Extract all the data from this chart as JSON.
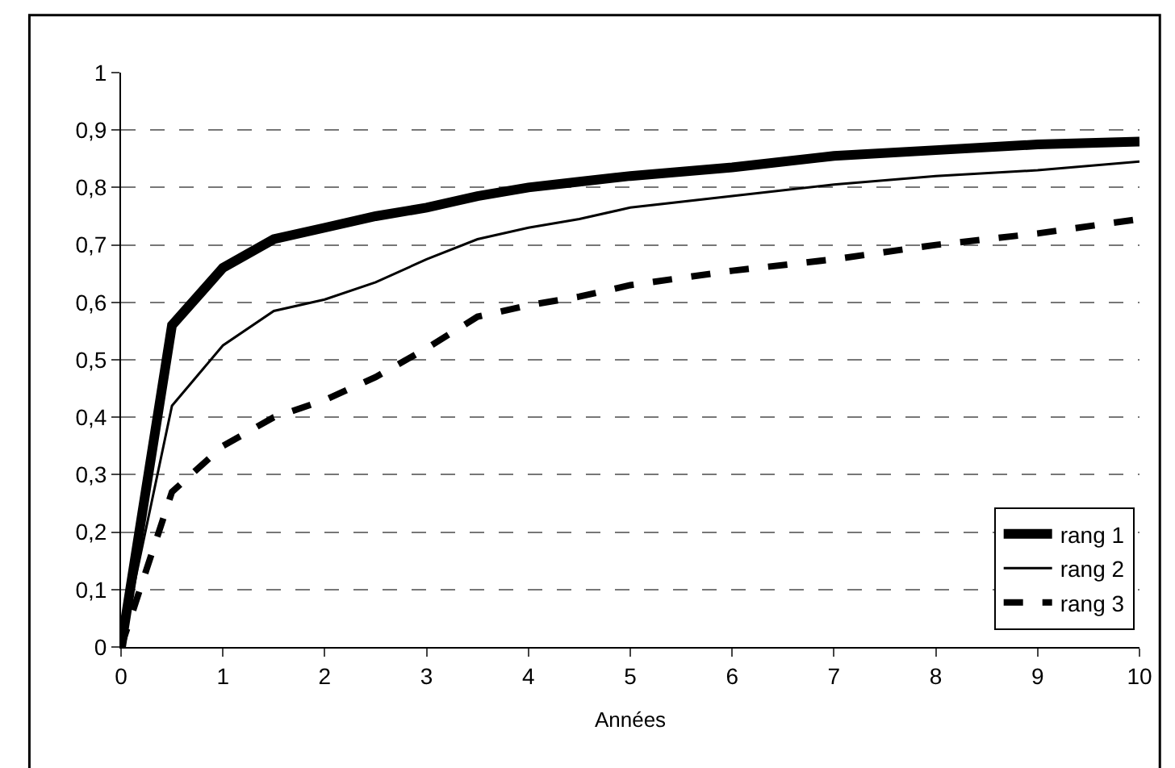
{
  "chart_data": {
    "type": "line",
    "xlabel": "Années",
    "x": [
      0,
      0.5,
      1,
      1.5,
      2,
      2.5,
      3,
      3.5,
      4,
      4.5,
      5,
      6,
      7,
      8,
      9,
      10
    ],
    "series": [
      {
        "name": "rang 1",
        "color": "#000000",
        "line_style": "solid",
        "values": [
          0,
          0.56,
          0.66,
          0.71,
          0.73,
          0.75,
          0.765,
          0.785,
          0.8,
          0.81,
          0.82,
          0.835,
          0.855,
          0.865,
          0.875,
          0.88
        ]
      },
      {
        "name": "rang 2",
        "color": "#000000",
        "line_style": "solid",
        "values": [
          0,
          0.42,
          0.525,
          0.585,
          0.605,
          0.635,
          0.675,
          0.71,
          0.73,
          0.745,
          0.765,
          0.785,
          0.805,
          0.82,
          0.83,
          0.845
        ]
      },
      {
        "name": "rang 3",
        "color": "#000000",
        "line_style": "dashed",
        "values": [
          0,
          0.27,
          0.35,
          0.4,
          0.43,
          0.47,
          0.52,
          0.575,
          0.595,
          0.61,
          0.63,
          0.655,
          0.675,
          0.7,
          0.72,
          0.745
        ]
      }
    ],
    "xlim": [
      0,
      10
    ],
    "xticks": [
      0,
      1,
      2,
      3,
      4,
      5,
      6,
      7,
      8,
      9,
      10
    ],
    "ylim": [
      0,
      1
    ],
    "yticks": [
      0,
      {
        "value": 0.1,
        "label": "0,1"
      },
      {
        "value": 0.2,
        "label": "0,2"
      },
      {
        "value": 0.3,
        "label": "0,3"
      },
      {
        "value": 0.4,
        "label": "0,4"
      },
      {
        "value": 0.5,
        "label": "0,5"
      },
      {
        "value": 0.6,
        "label": "0,6"
      },
      {
        "value": 0.7,
        "label": "0,7"
      },
      {
        "value": 0.8,
        "label": "0,8"
      },
      {
        "value": 0.9,
        "label": "0,9"
      },
      1
    ],
    "grid": "y",
    "legend": "bottom right",
    "marker": "none"
  }
}
